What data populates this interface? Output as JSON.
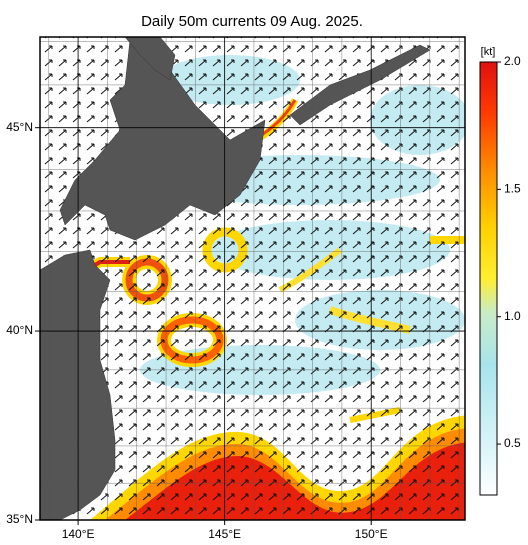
{
  "title": "Daily 50m currents 09 Aug. 2025.",
  "map": {
    "lon_range": [
      138.7,
      153.2
    ],
    "lat_range": [
      35,
      47.1
    ],
    "lon_ticks": [
      {
        "value": 140,
        "label": "140°E"
      },
      {
        "value": 145,
        "label": "145°E"
      },
      {
        "value": 150,
        "label": "150°E"
      }
    ],
    "lat_ticks": [
      {
        "value": 35,
        "label": "35°N"
      },
      {
        "value": 40,
        "label": "40°N"
      },
      {
        "value": 45,
        "label": "45°N"
      }
    ]
  },
  "colorbar": {
    "unit": "[kt]",
    "range": [
      0.3,
      2.0
    ],
    "ticks": [
      0.5,
      {
        "value": 1,
        "label": "1.0"
      },
      1.5,
      {
        "value": 2,
        "label": "2.0"
      }
    ]
  }
}
